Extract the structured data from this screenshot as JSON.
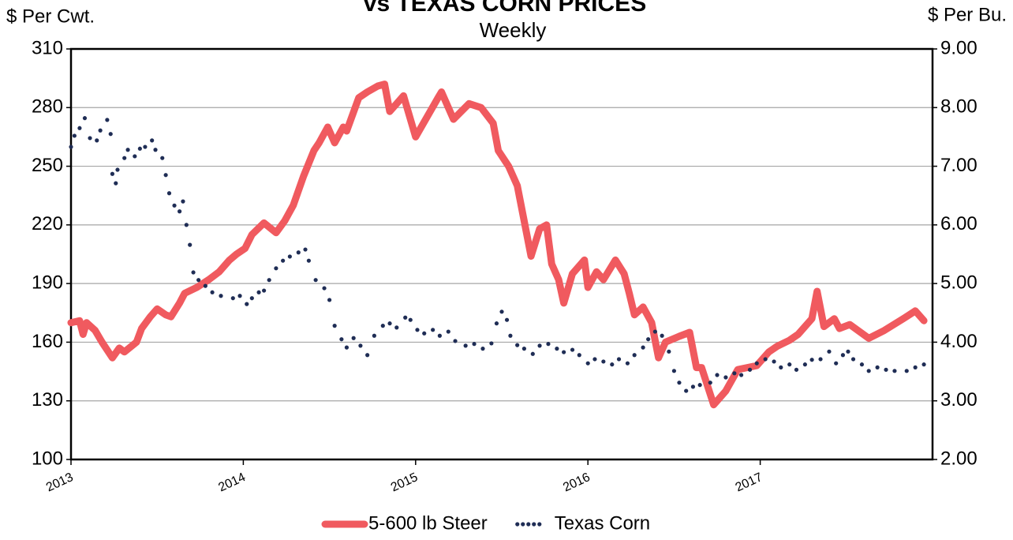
{
  "chart_data": {
    "type": "line",
    "title": "vs TEXAS CORN PRICES",
    "subtitle": "Weekly",
    "y_label": "$ Per Cwt.",
    "y2_label": "$ Per Bu.",
    "xlim": [
      2013,
      2018
    ],
    "xticks": [
      2013,
      2014,
      2015,
      2016,
      2017
    ],
    "ylim": [
      100,
      310
    ],
    "yticks": [
      100,
      130,
      160,
      190,
      220,
      250,
      280,
      310
    ],
    "y2lim": [
      2,
      9
    ],
    "y2ticks": [
      {
        "value": 2,
        "label": "2.00"
      },
      {
        "value": 3,
        "label": "3.00"
      },
      {
        "value": 4,
        "label": "4.00"
      },
      {
        "value": 5,
        "label": "5.00"
      },
      {
        "value": 6,
        "label": "6.00"
      },
      {
        "value": 7,
        "label": "7.00"
      },
      {
        "value": 8,
        "label": "8.00"
      },
      {
        "value": 9,
        "label": "9.00"
      }
    ],
    "grid": true,
    "legend": "bottom",
    "series": [
      {
        "name": "5-600 lb Steer",
        "color": "#f05a5f",
        "style": "solid",
        "x": [
          2013,
          2013.05,
          2013.07,
          2013.09,
          2013.14,
          2013.18,
          2013.24,
          2013.28,
          2013.31,
          2013.38,
          2013.41,
          2013.46,
          2013.5,
          2013.55,
          2013.58,
          2013.63,
          2013.66,
          2013.73,
          2013.8,
          2013.86,
          2013.92,
          2013.96,
          2014.01,
          2014.05,
          2014.12,
          2014.19,
          2014.24,
          2014.29,
          2014.35,
          2014.41,
          2014.44,
          2014.49,
          2014.53,
          2014.58,
          2014.6,
          2014.67,
          2014.72,
          2014.78,
          2014.82,
          2014.85,
          2014.93,
          2015,
          2015.13,
          2015.15,
          2015.22,
          2015.31,
          2015.38,
          2015.45,
          2015.48,
          2015.54,
          2015.59,
          2015.67,
          2015.72,
          2015.76,
          2015.79,
          2015.83,
          2015.86,
          2015.91,
          2015.98,
          2016,
          2016.05,
          2016.09,
          2016.16,
          2016.21,
          2016.24,
          2016.27,
          2016.32,
          2016.37,
          2016.41,
          2016.45,
          2016.53,
          2016.59,
          2016.63,
          2016.66,
          2016.73,
          2016.8,
          2016.87,
          2016.98,
          2017.05,
          2017.1,
          2017.17,
          2017.22,
          2017.3,
          2017.33,
          2017.37,
          2017.43,
          2017.46,
          2017.52,
          2017.63,
          2017.72,
          2017.83,
          2017.9,
          2017.95
        ],
        "values": [
          170,
          171,
          164,
          170,
          166,
          160,
          152,
          157,
          155,
          160,
          167,
          173,
          177,
          174,
          173,
          180,
          185,
          188,
          192,
          196,
          202,
          205,
          208,
          215,
          221,
          216,
          222,
          230,
          245,
          258,
          262,
          270,
          262,
          270,
          268,
          285,
          288,
          291,
          292,
          278,
          286,
          265,
          285,
          288,
          274,
          282,
          280,
          272,
          258,
          250,
          240,
          204,
          218,
          220,
          200,
          192,
          180,
          195,
          202,
          188,
          196,
          192,
          202,
          195,
          185,
          174,
          178,
          170,
          152,
          160,
          163,
          165,
          147,
          147,
          128,
          135,
          146,
          148,
          155,
          158,
          161,
          164,
          172,
          186,
          168,
          172,
          167,
          169,
          162,
          166,
          172,
          176,
          171
        ]
      },
      {
        "name": "Texas Corn",
        "color": "#1f2d55",
        "style": "dotted",
        "axis": "y2",
        "x": [
          2013,
          2013.02,
          2013.05,
          2013.08,
          2013.11,
          2013.15,
          2013.17,
          2013.21,
          2013.23,
          2013.24,
          2013.26,
          2013.27,
          2013.31,
          2013.33,
          2013.37,
          2013.4,
          2013.43,
          2013.47,
          2013.49,
          2013.53,
          2013.55,
          2013.57,
          2013.6,
          2013.63,
          2013.65,
          2013.67,
          2013.69,
          2013.71,
          2013.74,
          2013.78,
          2013.82,
          2013.87,
          2013.94,
          2013.98,
          2014.02,
          2014.05,
          2014.09,
          2014.12,
          2014.15,
          2014.19,
          2014.23,
          2014.27,
          2014.32,
          2014.36,
          2014.38,
          2014.42,
          2014.47,
          2014.5,
          2014.53,
          2014.57,
          2014.6,
          2014.64,
          2014.68,
          2014.72,
          2014.76,
          2014.81,
          2014.85,
          2014.89,
          2014.94,
          2014.97,
          2015.01,
          2015.05,
          2015.1,
          2015.14,
          2015.19,
          2015.23,
          2015.29,
          2015.34,
          2015.39,
          2015.44,
          2015.47,
          2015.5,
          2015.53,
          2015.55,
          2015.59,
          2015.63,
          2015.68,
          2015.72,
          2015.77,
          2015.82,
          2015.86,
          2015.91,
          2015.95,
          2016,
          2016.04,
          2016.09,
          2016.14,
          2016.18,
          2016.23,
          2016.27,
          2016.32,
          2016.35,
          2016.39,
          2016.43,
          2016.47,
          2016.5,
          2016.53,
          2016.57,
          2016.61,
          2016.65,
          2016.71,
          2016.75,
          2016.8,
          2016.85,
          2016.89,
          2016.94,
          2016.98,
          2017.03,
          2017.08,
          2017.12,
          2017.17,
          2017.21,
          2017.26,
          2017.3,
          2017.35,
          2017.4,
          2017.44,
          2017.48,
          2017.51,
          2017.54,
          2017.59,
          2017.63,
          2017.68,
          2017.73,
          2017.78,
          2017.85,
          2017.9,
          2017.95
        ],
        "values": [
          7.33,
          7.52,
          7.65,
          7.82,
          7.48,
          7.44,
          7.61,
          7.79,
          7.55,
          6.87,
          6.71,
          6.94,
          7.14,
          7.28,
          7.17,
          7.3,
          7.33,
          7.44,
          7.28,
          7.14,
          6.85,
          6.54,
          6.33,
          6.23,
          6.4,
          6,
          5.66,
          5.19,
          5.06,
          4.96,
          4.85,
          4.79,
          4.75,
          4.79,
          4.65,
          4.75,
          4.85,
          4.88,
          5.06,
          5.26,
          5.39,
          5.46,
          5.53,
          5.58,
          5.39,
          5.06,
          4.92,
          4.72,
          4.28,
          4.05,
          3.91,
          4.07,
          3.94,
          3.78,
          4.11,
          4.28,
          4.32,
          4.25,
          4.42,
          4.38,
          4.21,
          4.15,
          4.21,
          4.11,
          4.18,
          4.02,
          3.94,
          3.97,
          3.89,
          3.98,
          4.32,
          4.52,
          4.38,
          4.11,
          3.95,
          3.89,
          3.8,
          3.94,
          3.97,
          3.89,
          3.83,
          3.87,
          3.78,
          3.64,
          3.71,
          3.67,
          3.62,
          3.71,
          3.64,
          3.78,
          3.91,
          4.05,
          4.18,
          4.11,
          3.84,
          3.51,
          3.31,
          3.17,
          3.24,
          3.27,
          3.31,
          3.44,
          3.4,
          3.47,
          3.44,
          3.53,
          3.64,
          3.71,
          3.67,
          3.57,
          3.62,
          3.53,
          3.62,
          3.7,
          3.71,
          3.84,
          3.64,
          3.78,
          3.84,
          3.71,
          3.62,
          3.51,
          3.57,
          3.53,
          3.51,
          3.51,
          3.57,
          3.62
        ]
      }
    ]
  }
}
